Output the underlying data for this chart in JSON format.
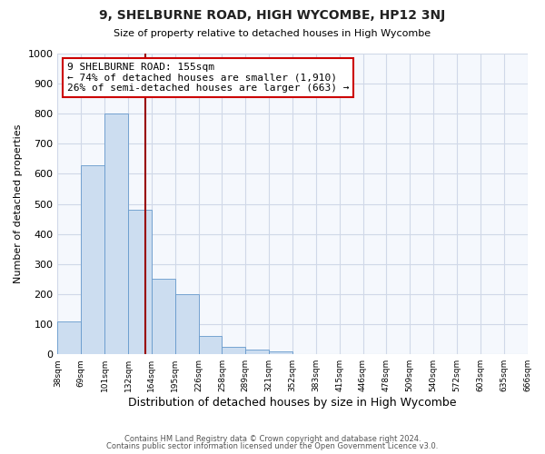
{
  "title": "9, SHELBURNE ROAD, HIGH WYCOMBE, HP12 3NJ",
  "subtitle": "Size of property relative to detached houses in High Wycombe",
  "xlabel": "Distribution of detached houses by size in High Wycombe",
  "ylabel": "Number of detached properties",
  "bar_values": [
    110,
    630,
    800,
    480,
    250,
    200,
    60,
    25,
    15,
    10,
    0,
    0,
    0,
    0,
    0,
    0,
    0,
    0,
    0,
    0
  ],
  "bin_labels": [
    "38sqm",
    "69sqm",
    "101sqm",
    "132sqm",
    "164sqm",
    "195sqm",
    "226sqm",
    "258sqm",
    "289sqm",
    "321sqm",
    "352sqm",
    "383sqm",
    "415sqm",
    "446sqm",
    "478sqm",
    "509sqm",
    "540sqm",
    "572sqm",
    "603sqm",
    "635sqm",
    "666sqm"
  ],
  "bar_color": "#ccddf0",
  "bar_edge_color": "#6699cc",
  "vline_color": "#990000",
  "annotation_title": "9 SHELBURNE ROAD: 155sqm",
  "annotation_line1": "← 74% of detached houses are smaller (1,910)",
  "annotation_line2": "26% of semi-detached houses are larger (663) →",
  "annotation_box_color": "#ffffff",
  "annotation_box_edge": "#cc0000",
  "ylim": [
    0,
    1000
  ],
  "yticks": [
    0,
    100,
    200,
    300,
    400,
    500,
    600,
    700,
    800,
    900,
    1000
  ],
  "footer1": "Contains HM Land Registry data © Crown copyright and database right 2024.",
  "footer2": "Contains public sector information licensed under the Open Government Licence v3.0.",
  "bg_color": "#ffffff",
  "plot_bg_color": "#f5f8fd",
  "grid_color": "#d0d8e8"
}
